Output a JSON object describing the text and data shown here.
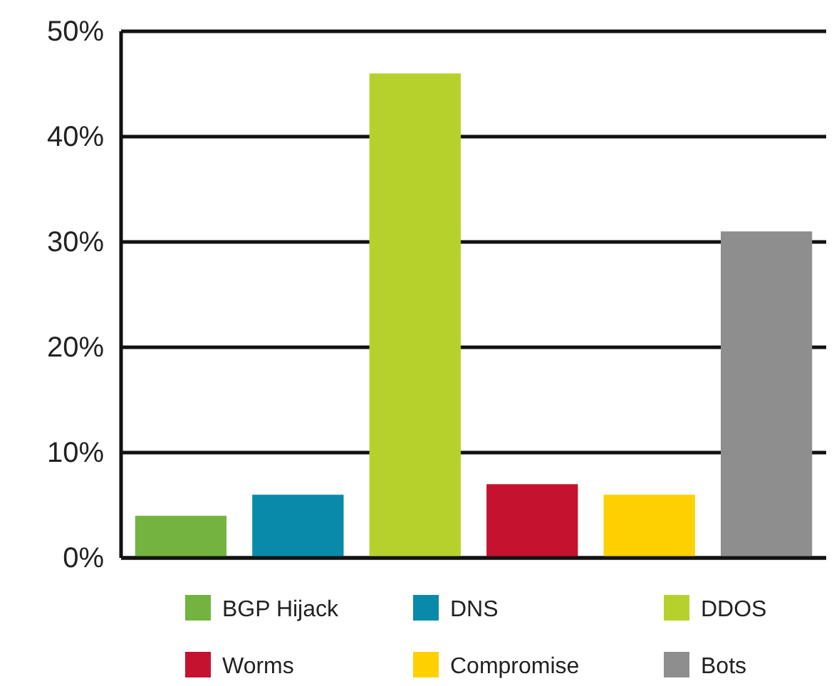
{
  "chart_data": {
    "type": "bar",
    "categories": [
      null,
      null,
      null,
      null,
      null,
      null
    ],
    "series": [
      {
        "name": "BGP Hijack",
        "color": "#72b43f",
        "values": [
          4,
          null,
          null,
          null,
          null,
          null
        ]
      },
      {
        "name": "DNS",
        "color": "#0a8aab",
        "values": [
          null,
          6,
          null,
          null,
          null,
          null
        ]
      },
      {
        "name": "DDOS",
        "color": "#b7d12c",
        "values": [
          null,
          null,
          46,
          null,
          null,
          null
        ]
      },
      {
        "name": "Worms",
        "color": "#c4122f",
        "values": [
          null,
          null,
          null,
          7,
          null,
          null
        ]
      },
      {
        "name": "Compromise",
        "color": "#ffd100",
        "values": [
          null,
          null,
          null,
          null,
          6,
          null
        ]
      },
      {
        "name": "Bots",
        "color": "#8e8e8e",
        "values": [
          null,
          null,
          null,
          null,
          null,
          31
        ]
      }
    ],
    "ylim": [
      0,
      50
    ],
    "yticks": [
      {
        "value": 0,
        "label": "0%"
      },
      {
        "value": 10,
        "label": "10%"
      },
      {
        "value": 20,
        "label": "20%"
      },
      {
        "value": 30,
        "label": "30%"
      },
      {
        "value": 40,
        "label": "40%"
      },
      {
        "value": 50,
        "label": "50%"
      }
    ],
    "grid": "y",
    "legend": "bottom"
  }
}
